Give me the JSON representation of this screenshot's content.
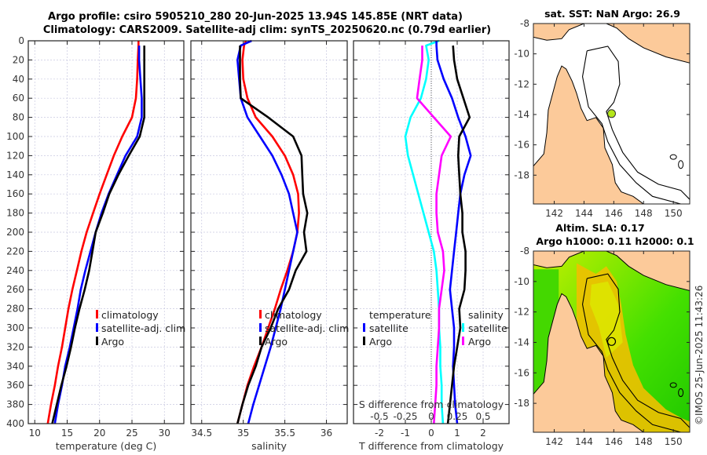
{
  "header": {
    "title_line1": "Argo profile: csiro 5905210_280 20-Jun-2025 13.94S 145.85E (NRT data)",
    "title_line2": "Climatology: CARS2009. Satellite-adj clim: synTS_20250620.nc (0.79d earlier)"
  },
  "chart_data": [
    {
      "type": "line",
      "name": "temperature-profile",
      "xlabel": "temperature (deg C)",
      "ylabel": "",
      "xlim": [
        9,
        33
      ],
      "ylim": [
        400,
        0
      ],
      "xticks": [
        "10",
        "15",
        "20",
        "25",
        "30"
      ],
      "yticks": [
        "0",
        "20",
        "40",
        "60",
        "80",
        "100",
        "120",
        "140",
        "160",
        "180",
        "200",
        "220",
        "240",
        "260",
        "280",
        "300",
        "320",
        "340",
        "360",
        "380",
        "400"
      ],
      "grid": true,
      "legend": {
        "placement": "lower-middle",
        "entries": [
          "climatology",
          "satellite-adj. clim",
          "Argo"
        ]
      },
      "depth": [
        0,
        5,
        20,
        40,
        60,
        80,
        100,
        120,
        140,
        160,
        180,
        200,
        220,
        240,
        260,
        280,
        300,
        320,
        340,
        360,
        380,
        400
      ],
      "series": [
        {
          "name": "climatology",
          "color": "#ff0000",
          "values": [
            26.0,
            26.0,
            25.9,
            25.8,
            25.6,
            25.0,
            23.5,
            22.2,
            21.1,
            20.0,
            19.0,
            18.0,
            17.2,
            16.5,
            15.8,
            15.2,
            14.7,
            14.2,
            13.6,
            13.1,
            12.5,
            12.0
          ]
        },
        {
          "name": "satellite-adj. clim",
          "color": "#0000ff",
          "values": [
            null,
            26.1,
            26.1,
            26.3,
            26.5,
            26.5,
            25.8,
            24.0,
            22.7,
            21.4,
            20.3,
            19.4,
            18.6,
            17.8,
            17.1,
            16.6,
            16.0,
            15.4,
            14.7,
            14.2,
            13.6,
            13.1
          ]
        },
        {
          "name": "Argo",
          "color": "#000000",
          "values": [
            null,
            26.9,
            26.9,
            26.9,
            26.9,
            26.9,
            26.2,
            24.5,
            22.9,
            21.5,
            20.5,
            19.4,
            18.9,
            18.4,
            17.7,
            16.9,
            16.2,
            15.6,
            14.9,
            14.1,
            13.4,
            12.7
          ]
        }
      ]
    },
    {
      "type": "line",
      "name": "salinity-profile",
      "xlabel": "salinity",
      "xlim": [
        34.37,
        36.25
      ],
      "ylim": [
        400,
        0
      ],
      "xticks": [
        "34.5",
        "35",
        "35.5",
        "36"
      ],
      "grid": true,
      "legend": {
        "placement": "lower-middle",
        "entries": [
          "climatology",
          "satellite-adj. clim",
          "Argo"
        ]
      },
      "depth": [
        0,
        5,
        20,
        40,
        60,
        80,
        100,
        120,
        140,
        160,
        180,
        200,
        220,
        240,
        260,
        280,
        300,
        320,
        340,
        360,
        380,
        400
      ],
      "series": [
        {
          "name": "climatology",
          "color": "#ff0000",
          "values": [
            35.03,
            35.01,
            34.99,
            35.0,
            35.05,
            35.15,
            35.35,
            35.5,
            35.6,
            35.66,
            35.67,
            35.65,
            35.6,
            35.53,
            35.45,
            35.38,
            35.3,
            35.22,
            35.13,
            35.05,
            34.99,
            34.93
          ]
        },
        {
          "name": "satellite-adj. clim",
          "color": "#0000ff",
          "values": [
            35.1,
            34.97,
            34.93,
            34.95,
            34.97,
            35.05,
            35.2,
            35.35,
            35.46,
            35.55,
            35.6,
            35.65,
            35.6,
            35.55,
            35.5,
            35.45,
            35.39,
            35.33,
            35.26,
            35.19,
            35.12,
            35.06
          ]
        },
        {
          "name": "Argo",
          "color": "#000000",
          "values": [
            null,
            34.96,
            34.96,
            34.96,
            34.97,
            35.3,
            35.6,
            35.7,
            35.71,
            35.72,
            35.77,
            35.73,
            35.76,
            35.63,
            35.55,
            35.42,
            35.33,
            35.22,
            35.15,
            35.06,
            34.99,
            34.93
          ]
        }
      ]
    },
    {
      "type": "line",
      "name": "difference-profile",
      "xlabel": "T difference from climatology",
      "xlabel_top": "S difference from climatology",
      "xlim": [
        -3,
        3
      ],
      "xlim_s": [
        -0.75,
        0.75
      ],
      "ylim": [
        400,
        0
      ],
      "xticks": [
        "-2",
        "-1",
        "0",
        "1",
        "2"
      ],
      "xticks_s": [
        "-0.5",
        "-0.25",
        "0",
        "0.25",
        "0.5"
      ],
      "grid": true,
      "legend": {
        "placement": "lower",
        "temperature_header": "temperature",
        "salinity_header": "salinity",
        "entries": [
          "satellite",
          "Argo",
          "satellite",
          "Argo"
        ]
      },
      "depth": [
        0,
        5,
        20,
        40,
        60,
        80,
        100,
        120,
        140,
        160,
        180,
        200,
        220,
        240,
        260,
        280,
        300,
        320,
        340,
        360,
        380,
        400
      ],
      "series": [
        {
          "name": "temperature satellite",
          "color": "#00ffff",
          "values": [
            0.3,
            -0.2,
            -0.1,
            -0.2,
            -0.4,
            -0.8,
            -1.0,
            -0.9,
            -0.7,
            -0.5,
            -0.3,
            -0.1,
            0.1,
            0.2,
            0.25,
            0.3,
            0.3,
            0.35,
            0.35,
            0.4,
            0.4,
            0.45
          ]
        },
        {
          "name": "temperature Argo",
          "color": "#ff00ff",
          "values": [
            null,
            -0.35,
            -0.35,
            -0.45,
            -0.55,
            0.1,
            0.75,
            0.4,
            0.3,
            0.2,
            0.2,
            0.25,
            0.45,
            0.5,
            0.4,
            0.3,
            0.3,
            0.25,
            0.2,
            0.2,
            0.15,
            0.1
          ]
        },
        {
          "name": "salinity satellite",
          "color": "#0000ff",
          "values": [
            0.05,
            0.05,
            0.06,
            0.12,
            0.2,
            0.26,
            0.33,
            0.38,
            0.32,
            0.28,
            0.26,
            0.24,
            0.22,
            0.2,
            0.18,
            0.2,
            0.22,
            0.22,
            0.21,
            0.22,
            0.23,
            0.25
          ]
        },
        {
          "name": "salinity Argo",
          "color": "#000000",
          "values": [
            null,
            0.21,
            0.22,
            0.25,
            0.31,
            0.37,
            0.27,
            0.26,
            0.27,
            0.28,
            0.3,
            0.3,
            0.33,
            0.33,
            0.32,
            0.27,
            0.28,
            0.25,
            0.22,
            0.2,
            0.18,
            0.16
          ]
        }
      ]
    }
  ],
  "maps": [
    {
      "name": "sst-map",
      "title": "sat. SST: NaN Argo: 26.9",
      "lon_ticks": [
        "142",
        "144",
        "146",
        "148",
        "150"
      ],
      "lat_ticks": [
        "-8",
        "-10",
        "-12",
        "-14",
        "-16",
        "-18"
      ],
      "marker": {
        "lon": 145.85,
        "lat": -13.94,
        "color": "#b4e619"
      }
    },
    {
      "name": "sla-map",
      "title_line1": "Altim. SLA: 0.17",
      "title_line2": "Argo h1000: 0.11 h2000: 0.1",
      "lon_ticks": [
        "142",
        "144",
        "146",
        "148",
        "150"
      ],
      "lat_ticks": [
        "-8",
        "-10",
        "-12",
        "-14",
        "-16",
        "-18"
      ],
      "marker": {
        "lon": 145.85,
        "lat": -13.94
      }
    }
  ],
  "copyright": "©IMOS 25-Jun-2025 11:43:26",
  "colors": {
    "land": "#fcca9a",
    "climatology": "#ff0000",
    "satellite": "#0000ff",
    "argo": "#000000",
    "t_sat": "#00ffff",
    "t_argo": "#ff00ff"
  }
}
